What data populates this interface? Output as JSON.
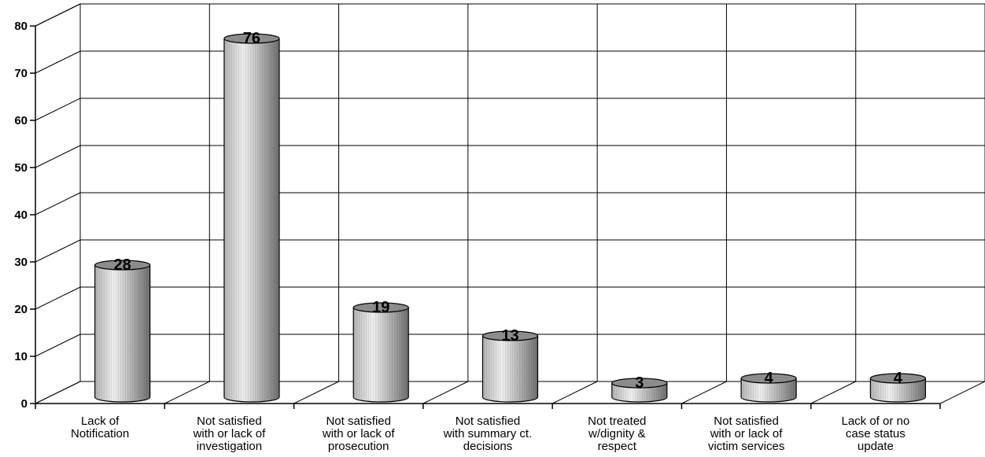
{
  "chart_data": {
    "type": "bar",
    "style": "3d-cylinder",
    "categories": [
      [
        "Lack of",
        "Notification"
      ],
      [
        "Not satisfied",
        "with or lack of",
        "investigation"
      ],
      [
        "Not satisfied",
        "with or lack of",
        "prosecution"
      ],
      [
        "Not satisfied",
        "with summary ct.",
        "decisions"
      ],
      [
        "Not treated",
        "w/dignity &",
        "respect"
      ],
      [
        "Not satisfied",
        "with or lack of",
        "victim services"
      ],
      [
        "Lack of or no",
        "case status",
        "update"
      ]
    ],
    "values": [
      28,
      76,
      19,
      13,
      3,
      4,
      4
    ],
    "data_labels": [
      "28",
      "76",
      "19",
      "13",
      "3",
      "4",
      "4"
    ],
    "yticks": [
      "0",
      "10",
      "20",
      "30",
      "40",
      "50",
      "60",
      "70",
      "80"
    ],
    "ylim": [
      0,
      80
    ],
    "grid": true,
    "legend": "none",
    "colors": {
      "bar_light": "#f0f0f0",
      "bar_mid": "#b4b4b4",
      "bar_dark": "#6e6e6e",
      "bar_top": "#8c8c8c",
      "grid": "#000000"
    }
  }
}
